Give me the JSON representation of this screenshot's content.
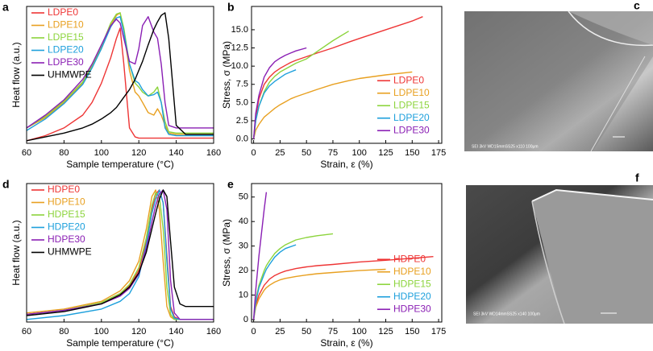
{
  "chart_data": [
    {
      "type": "line",
      "label": "a",
      "xlabel": "Sample temperature (°C)",
      "ylabel": "Heat flow (a.u.)",
      "legend": "upper left",
      "xlim": [
        60,
        160
      ],
      "xticks": [
        60,
        80,
        100,
        120,
        140,
        160
      ],
      "ylim": [
        -0.02,
        1.05
      ],
      "x": [
        60,
        70,
        80,
        90,
        95,
        100,
        105,
        108,
        110,
        112,
        115,
        118,
        120,
        122,
        125,
        128,
        130,
        132,
        134,
        136,
        140,
        145,
        150,
        160
      ],
      "series": [
        {
          "name": "LDPE0",
          "color": "#ee3535",
          "values": [
            0.0,
            0.04,
            0.1,
            0.2,
            0.3,
            0.45,
            0.65,
            0.8,
            0.88,
            0.6,
            0.1,
            0.03,
            0.02,
            0.02,
            0.02,
            0.02,
            0.02,
            0.02,
            0.02,
            0.02,
            0.02,
            0.02,
            0.02,
            0.02
          ]
        },
        {
          "name": "LDPE10",
          "color": "#e8a020",
          "values": [
            0.1,
            0.18,
            0.3,
            0.45,
            0.58,
            0.72,
            0.9,
            0.98,
            1.0,
            0.85,
            0.55,
            0.38,
            0.35,
            0.3,
            0.22,
            0.2,
            0.25,
            0.2,
            0.12,
            0.06,
            0.05,
            0.05,
            0.05,
            0.05
          ]
        },
        {
          "name": "LDPE15",
          "color": "#8cd43c",
          "values": [
            0.1,
            0.19,
            0.31,
            0.46,
            0.59,
            0.74,
            0.92,
            0.99,
            1.0,
            0.88,
            0.6,
            0.45,
            0.42,
            0.38,
            0.35,
            0.38,
            0.42,
            0.3,
            0.15,
            0.07,
            0.06,
            0.06,
            0.06,
            0.06
          ]
        },
        {
          "name": "LDPE20",
          "color": "#1ea0dc",
          "values": [
            0.08,
            0.17,
            0.29,
            0.44,
            0.57,
            0.72,
            0.89,
            0.96,
            0.97,
            0.85,
            0.6,
            0.47,
            0.45,
            0.4,
            0.35,
            0.36,
            0.38,
            0.3,
            0.1,
            0.05,
            0.04,
            0.04,
            0.04,
            0.04
          ]
        },
        {
          "name": "LDPE30",
          "color": "#8a1fb4",
          "values": [
            0.1,
            0.2,
            0.32,
            0.48,
            0.6,
            0.75,
            0.9,
            0.95,
            0.92,
            0.8,
            0.62,
            0.6,
            0.72,
            0.9,
            0.97,
            0.85,
            0.8,
            0.6,
            0.3,
            0.12,
            0.1,
            0.1,
            0.1,
            0.1
          ]
        },
        {
          "name": "UHMWPE",
          "color": "#000000",
          "values": [
            0.0,
            0.03,
            0.06,
            0.1,
            0.13,
            0.17,
            0.22,
            0.26,
            0.3,
            0.34,
            0.4,
            0.48,
            0.55,
            0.62,
            0.75,
            0.87,
            0.93,
            0.98,
            1.0,
            0.8,
            0.12,
            0.05,
            0.05,
            0.05
          ]
        }
      ]
    },
    {
      "type": "line",
      "label": "b",
      "xlabel": "Strain, ε (%)",
      "ylabel": "Stress, σ (MPa)",
      "legend": "lower right",
      "xlim": [
        -2,
        178
      ],
      "xticks": [
        0,
        25,
        50,
        75,
        100,
        125,
        150,
        175
      ],
      "ylim": [
        -0.6,
        18.2
      ],
      "yticks": [
        {
          "value": 0,
          "label": "0.0"
        },
        {
          "value": 2.5,
          "label": "2.5"
        },
        {
          "value": 5,
          "label": "5.0"
        },
        {
          "value": 7.5,
          "label": "7.5"
        },
        {
          "value": 10,
          "label": "10.0"
        },
        {
          "value": 12.5,
          "label": "12.5"
        },
        {
          "value": 15,
          "label": "15.0"
        }
      ],
      "x": [
        0,
        2,
        5,
        10,
        15,
        20,
        25,
        30,
        35,
        40,
        50,
        60,
        75,
        90,
        100,
        125,
        150,
        160
      ],
      "series": [
        {
          "name": "LDPE0",
          "color": "#ee3535",
          "values": [
            0,
            3,
            5.5,
            7.5,
            8.5,
            9.2,
            9.7,
            10.1,
            10.5,
            10.8,
            11.3,
            11.8,
            12.5,
            13.3,
            13.8,
            15.0,
            16.2,
            16.8
          ]
        },
        {
          "name": "LDPE10",
          "color": "#e8a020",
          "values": [
            0,
            1.2,
            2,
            3,
            3.6,
            4.2,
            4.7,
            5.1,
            5.5,
            5.8,
            6.3,
            6.8,
            7.5,
            8.0,
            8.3,
            8.8,
            9.2,
            null
          ]
        },
        {
          "name": "LDPE15",
          "color": "#8cd43c",
          "values": [
            0,
            2.5,
            4.5,
            6.5,
            7.8,
            8.6,
            9.2,
            9.6,
            10,
            10.4,
            11,
            12,
            13.5,
            14.8,
            null,
            null,
            null,
            null
          ]
        },
        {
          "name": "LDPE20",
          "color": "#1ea0dc",
          "values": [
            0,
            2.5,
            4.5,
            6.3,
            7.3,
            7.9,
            8.4,
            8.9,
            9.2,
            9.5,
            null,
            null,
            null,
            null,
            null,
            null,
            null,
            null
          ]
        },
        {
          "name": "LDPE30",
          "color": "#8a1fb4",
          "values": [
            0,
            3.5,
            6,
            8.5,
            9.8,
            10.6,
            11.1,
            11.5,
            11.8,
            12.1,
            12.5,
            null,
            null,
            null,
            null,
            null,
            null,
            null
          ]
        }
      ]
    },
    {
      "type": "line",
      "label": "d",
      "xlabel": "Sample temperature (°C)",
      "ylabel": "Heat flow (a.u.)",
      "legend": "upper left",
      "xlim": [
        60,
        160
      ],
      "xticks": [
        60,
        80,
        100,
        120,
        140,
        160
      ],
      "ylim": [
        -0.02,
        1.05
      ],
      "x": [
        60,
        80,
        100,
        110,
        115,
        120,
        124,
        127,
        129,
        131,
        133,
        135,
        137,
        139,
        142,
        145,
        150,
        160
      ],
      "series": [
        {
          "name": "HDPE0",
          "color": "#ee3535",
          "values": [
            0.04,
            0.07,
            0.13,
            0.2,
            0.26,
            0.38,
            0.6,
            0.85,
            0.97,
            1.0,
            0.9,
            0.5,
            0.1,
            0.02,
            0.0,
            0.0,
            0.0,
            0.0
          ]
        },
        {
          "name": "HDPE10",
          "color": "#e8a020",
          "values": [
            0.05,
            0.08,
            0.14,
            0.22,
            0.3,
            0.45,
            0.7,
            0.95,
            1.0,
            0.85,
            0.45,
            0.1,
            0.02,
            0.0,
            0.0,
            0.0,
            0.0,
            0.0
          ]
        },
        {
          "name": "HDPE15",
          "color": "#8cd43c",
          "values": [
            0.04,
            0.07,
            0.13,
            0.2,
            0.27,
            0.4,
            0.63,
            0.88,
            0.98,
            0.95,
            0.7,
            0.25,
            0.04,
            0.0,
            0.0,
            0.0,
            0.0,
            0.0
          ]
        },
        {
          "name": "HDPE20",
          "color": "#1ea0dc",
          "values": [
            0.0,
            0.03,
            0.08,
            0.14,
            0.2,
            0.33,
            0.58,
            0.82,
            0.93,
            1.0,
            0.9,
            0.45,
            0.08,
            0.01,
            0.0,
            0.0,
            0.0,
            0.0
          ]
        },
        {
          "name": "HDPE30",
          "color": "#8a1fb4",
          "values": [
            0.04,
            0.07,
            0.12,
            0.18,
            0.24,
            0.35,
            0.55,
            0.75,
            0.88,
            0.97,
            1.0,
            0.85,
            0.3,
            0.05,
            0.0,
            0.0,
            0.0,
            0.0
          ]
        },
        {
          "name": "UHMWPE",
          "color": "#000000",
          "values": [
            0.03,
            0.06,
            0.12,
            0.19,
            0.25,
            0.36,
            0.52,
            0.7,
            0.82,
            0.93,
            1.0,
            0.95,
            0.6,
            0.25,
            0.12,
            0.1,
            0.1,
            0.1
          ]
        }
      ]
    },
    {
      "type": "line",
      "label": "e",
      "xlabel": "Strain, ε (%)",
      "ylabel": "Stress, σ (MPa)",
      "legend": "lower right",
      "xlim": [
        -2,
        178
      ],
      "xticks": [
        0,
        25,
        50,
        75,
        100,
        125,
        150,
        175
      ],
      "ylim": [
        -1,
        55.5
      ],
      "yticks": [
        0,
        10,
        20,
        30,
        40,
        50
      ],
      "x": [
        0,
        2,
        5,
        10,
        12,
        15,
        20,
        25,
        30,
        40,
        50,
        60,
        75,
        100,
        125,
        150,
        170
      ],
      "series": [
        {
          "name": "HDPE0",
          "color": "#ee3535",
          "values": [
            0,
            6,
            10,
            14,
            15,
            16.5,
            18,
            19,
            19.8,
            20.8,
            21.5,
            22,
            22.5,
            23.5,
            24.2,
            25,
            25.7
          ]
        },
        {
          "name": "HDPE10",
          "color": "#e8a020",
          "values": [
            0,
            5,
            8.5,
            12,
            13,
            14,
            15.3,
            16.2,
            16.8,
            17.6,
            18.2,
            18.7,
            19.2,
            20,
            20.5,
            null,
            null
          ]
        },
        {
          "name": "HDPE15",
          "color": "#8cd43c",
          "values": [
            0,
            8,
            14,
            20,
            22,
            24,
            27,
            29,
            30.5,
            32.5,
            33.5,
            34.2,
            35,
            null,
            null,
            null,
            null
          ]
        },
        {
          "name": "HDPE20",
          "color": "#1ea0dc",
          "values": [
            0,
            7,
            13,
            18.5,
            20.5,
            22.5,
            25.5,
            27.5,
            29,
            30.5,
            null,
            null,
            null,
            null,
            null,
            null,
            null
          ]
        },
        {
          "name": "HDPE30",
          "color": "#8a1fb4",
          "values": [
            0,
            12,
            26,
            45,
            52,
            null,
            null,
            null,
            null,
            null,
            null,
            null,
            null,
            null,
            null,
            null,
            null
          ]
        }
      ]
    }
  ],
  "images": [
    {
      "label": "c",
      "caption": "SEI  3kV  WD15mmSS25  x110  100μm"
    },
    {
      "label": "f",
      "caption": "SEI  3kV  WD14mmSS25  x140  100μm"
    }
  ]
}
